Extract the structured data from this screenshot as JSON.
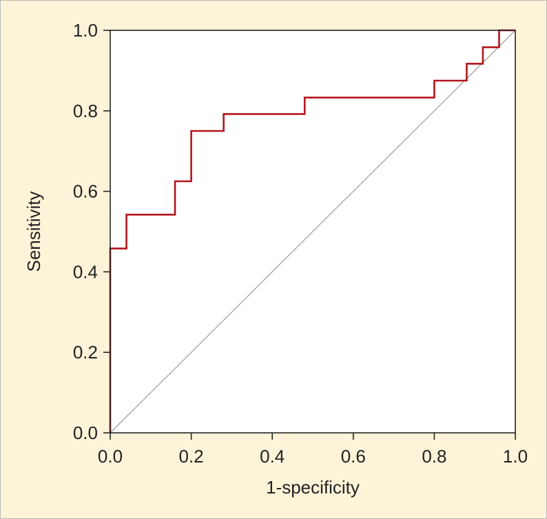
{
  "chart_data": {
    "type": "line",
    "title": "",
    "xlabel": "1-specificity",
    "ylabel": "Sensitivity",
    "xlim": [
      0,
      1
    ],
    "ylim": [
      0,
      1
    ],
    "xticks": [
      "0.0",
      "0.2",
      "0.4",
      "0.6",
      "0.8",
      "1.0"
    ],
    "yticks": [
      "0.0",
      "0.2",
      "0.4",
      "0.6",
      "0.8",
      "1.0"
    ],
    "grid": false,
    "colors": {
      "roc": "#b3141c",
      "reference": "#a0a0a0",
      "background": "#fdf3d8"
    },
    "series": [
      {
        "style": "step",
        "x": [
          0,
          0,
          0.04,
          0.04,
          0.16,
          0.16,
          0.2,
          0.2,
          0.28,
          0.28,
          0.48,
          0.48,
          0.8,
          0.8,
          0.88,
          0.88,
          0.92,
          0.92,
          0.96,
          0.96,
          1.0
        ],
        "y": [
          0,
          0.458,
          0.458,
          0.542,
          0.542,
          0.625,
          0.625,
          0.75,
          0.75,
          0.792,
          0.792,
          0.833,
          0.833,
          0.875,
          0.875,
          0.917,
          0.917,
          0.958,
          0.958,
          1.0,
          1.0
        ]
      },
      {
        "style": "reference-diagonal",
        "x": [
          0,
          1
        ],
        "y": [
          0,
          1
        ]
      }
    ]
  }
}
